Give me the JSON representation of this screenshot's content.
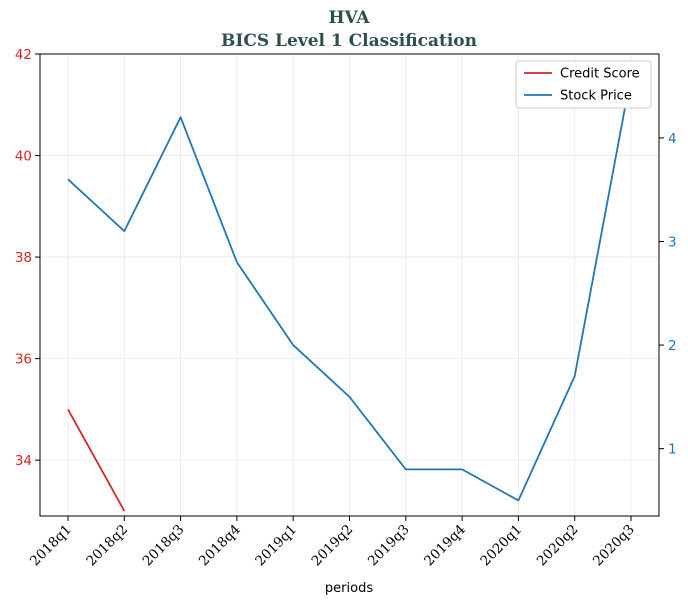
{
  "chart_data": {
    "type": "line",
    "title_line1": "HVA",
    "title_line2": "BICS Level 1 Classification",
    "xlabel": "periods",
    "categories": [
      "2018q1",
      "2018q2",
      "2018q3",
      "2018q4",
      "2019q1",
      "2019q2",
      "2019q3",
      "2019q4",
      "2020q1",
      "2020q2",
      "2020q3"
    ],
    "series": [
      {
        "name": "Credit Score",
        "axis": "left",
        "color": "#d62728",
        "values": [
          35,
          33,
          null,
          null,
          null,
          null,
          null,
          null,
          null,
          null,
          null
        ]
      },
      {
        "name": "Stock Price",
        "axis": "right",
        "color": "#1f77b4",
        "values": [
          3.6,
          3.1,
          4.2,
          2.8,
          2.0,
          1.5,
          0.8,
          0.8,
          0.5,
          1.7,
          4.6
        ]
      }
    ],
    "y_left": {
      "lim": [
        32.9,
        42.0
      ],
      "ticks": [
        34,
        36,
        38,
        40,
        42
      ],
      "color": "#d62728"
    },
    "y_right": {
      "lim": [
        0.35,
        4.81
      ],
      "ticks": [
        1,
        2,
        3,
        4
      ],
      "color": "#1f77b4"
    },
    "grid": true,
    "legend_position": "top-right"
  }
}
